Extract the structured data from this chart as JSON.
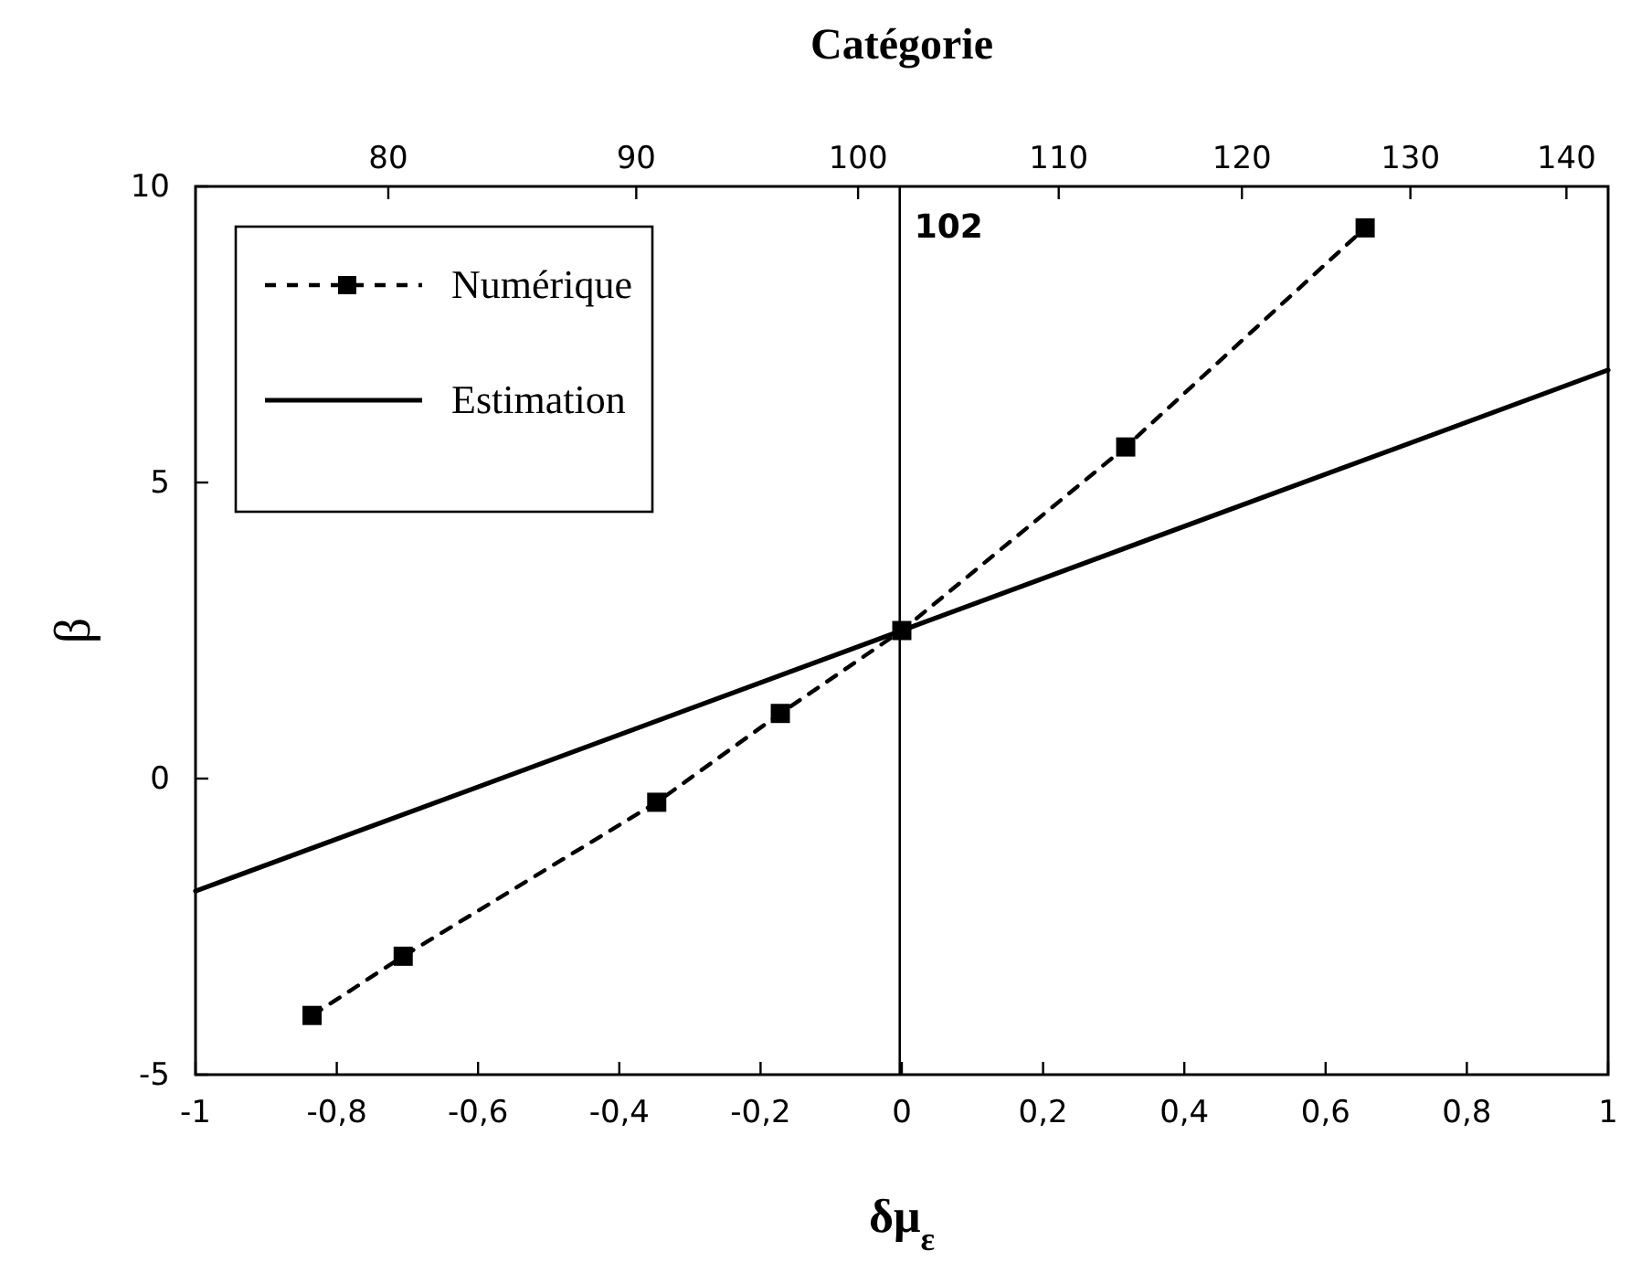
{
  "chart_data": {
    "type": "line",
    "xlabel": "δμ$_{ε}$",
    "ylabel": "β",
    "x2label": "Catégorie",
    "xlim": [
      -1,
      1
    ],
    "xticks": [
      -1,
      {
        "value": -0.8,
        "label": "-0,8"
      },
      {
        "value": -0.6,
        "label": "-0,6"
      },
      {
        "value": -0.4,
        "label": "-0,4"
      },
      {
        "value": -0.2,
        "label": "-0,2"
      },
      0,
      {
        "value": 0.2,
        "label": "0,2"
      },
      {
        "value": 0.4,
        "label": "0,4"
      },
      {
        "value": 0.6,
        "label": "0,6"
      },
      {
        "value": 0.8,
        "label": "0,8"
      },
      1
    ],
    "ylim": [
      -5,
      10
    ],
    "yticks": [
      -5,
      0,
      5,
      10
    ],
    "x2lim": [
      73,
      142.8
    ],
    "x2ticks": [
      80,
      90,
      100,
      110,
      120,
      130,
      140
    ],
    "log": "x2",
    "grid": false,
    "legend": "top left",
    "series": [
      {
        "name": "Numérique",
        "color": "#000000",
        "marker": "square",
        "line_style": "dashed",
        "x": [
          -0.835,
          -0.706,
          -0.347,
          -0.172,
          0,
          0.317,
          0.656
        ],
        "values": [
          -4.0,
          -3.0,
          -0.4,
          1.1,
          2.5,
          5.6,
          9.3
        ]
      },
      {
        "name": "Estimation",
        "color": "#000000",
        "marker": "none",
        "line_style": "solid",
        "x": [
          -1,
          0,
          1
        ],
        "values": [
          -1.9,
          2.5,
          6.9
        ]
      }
    ],
    "ref_lines": [
      {
        "axis": "x2",
        "value": 102,
        "label": "102"
      }
    ]
  }
}
